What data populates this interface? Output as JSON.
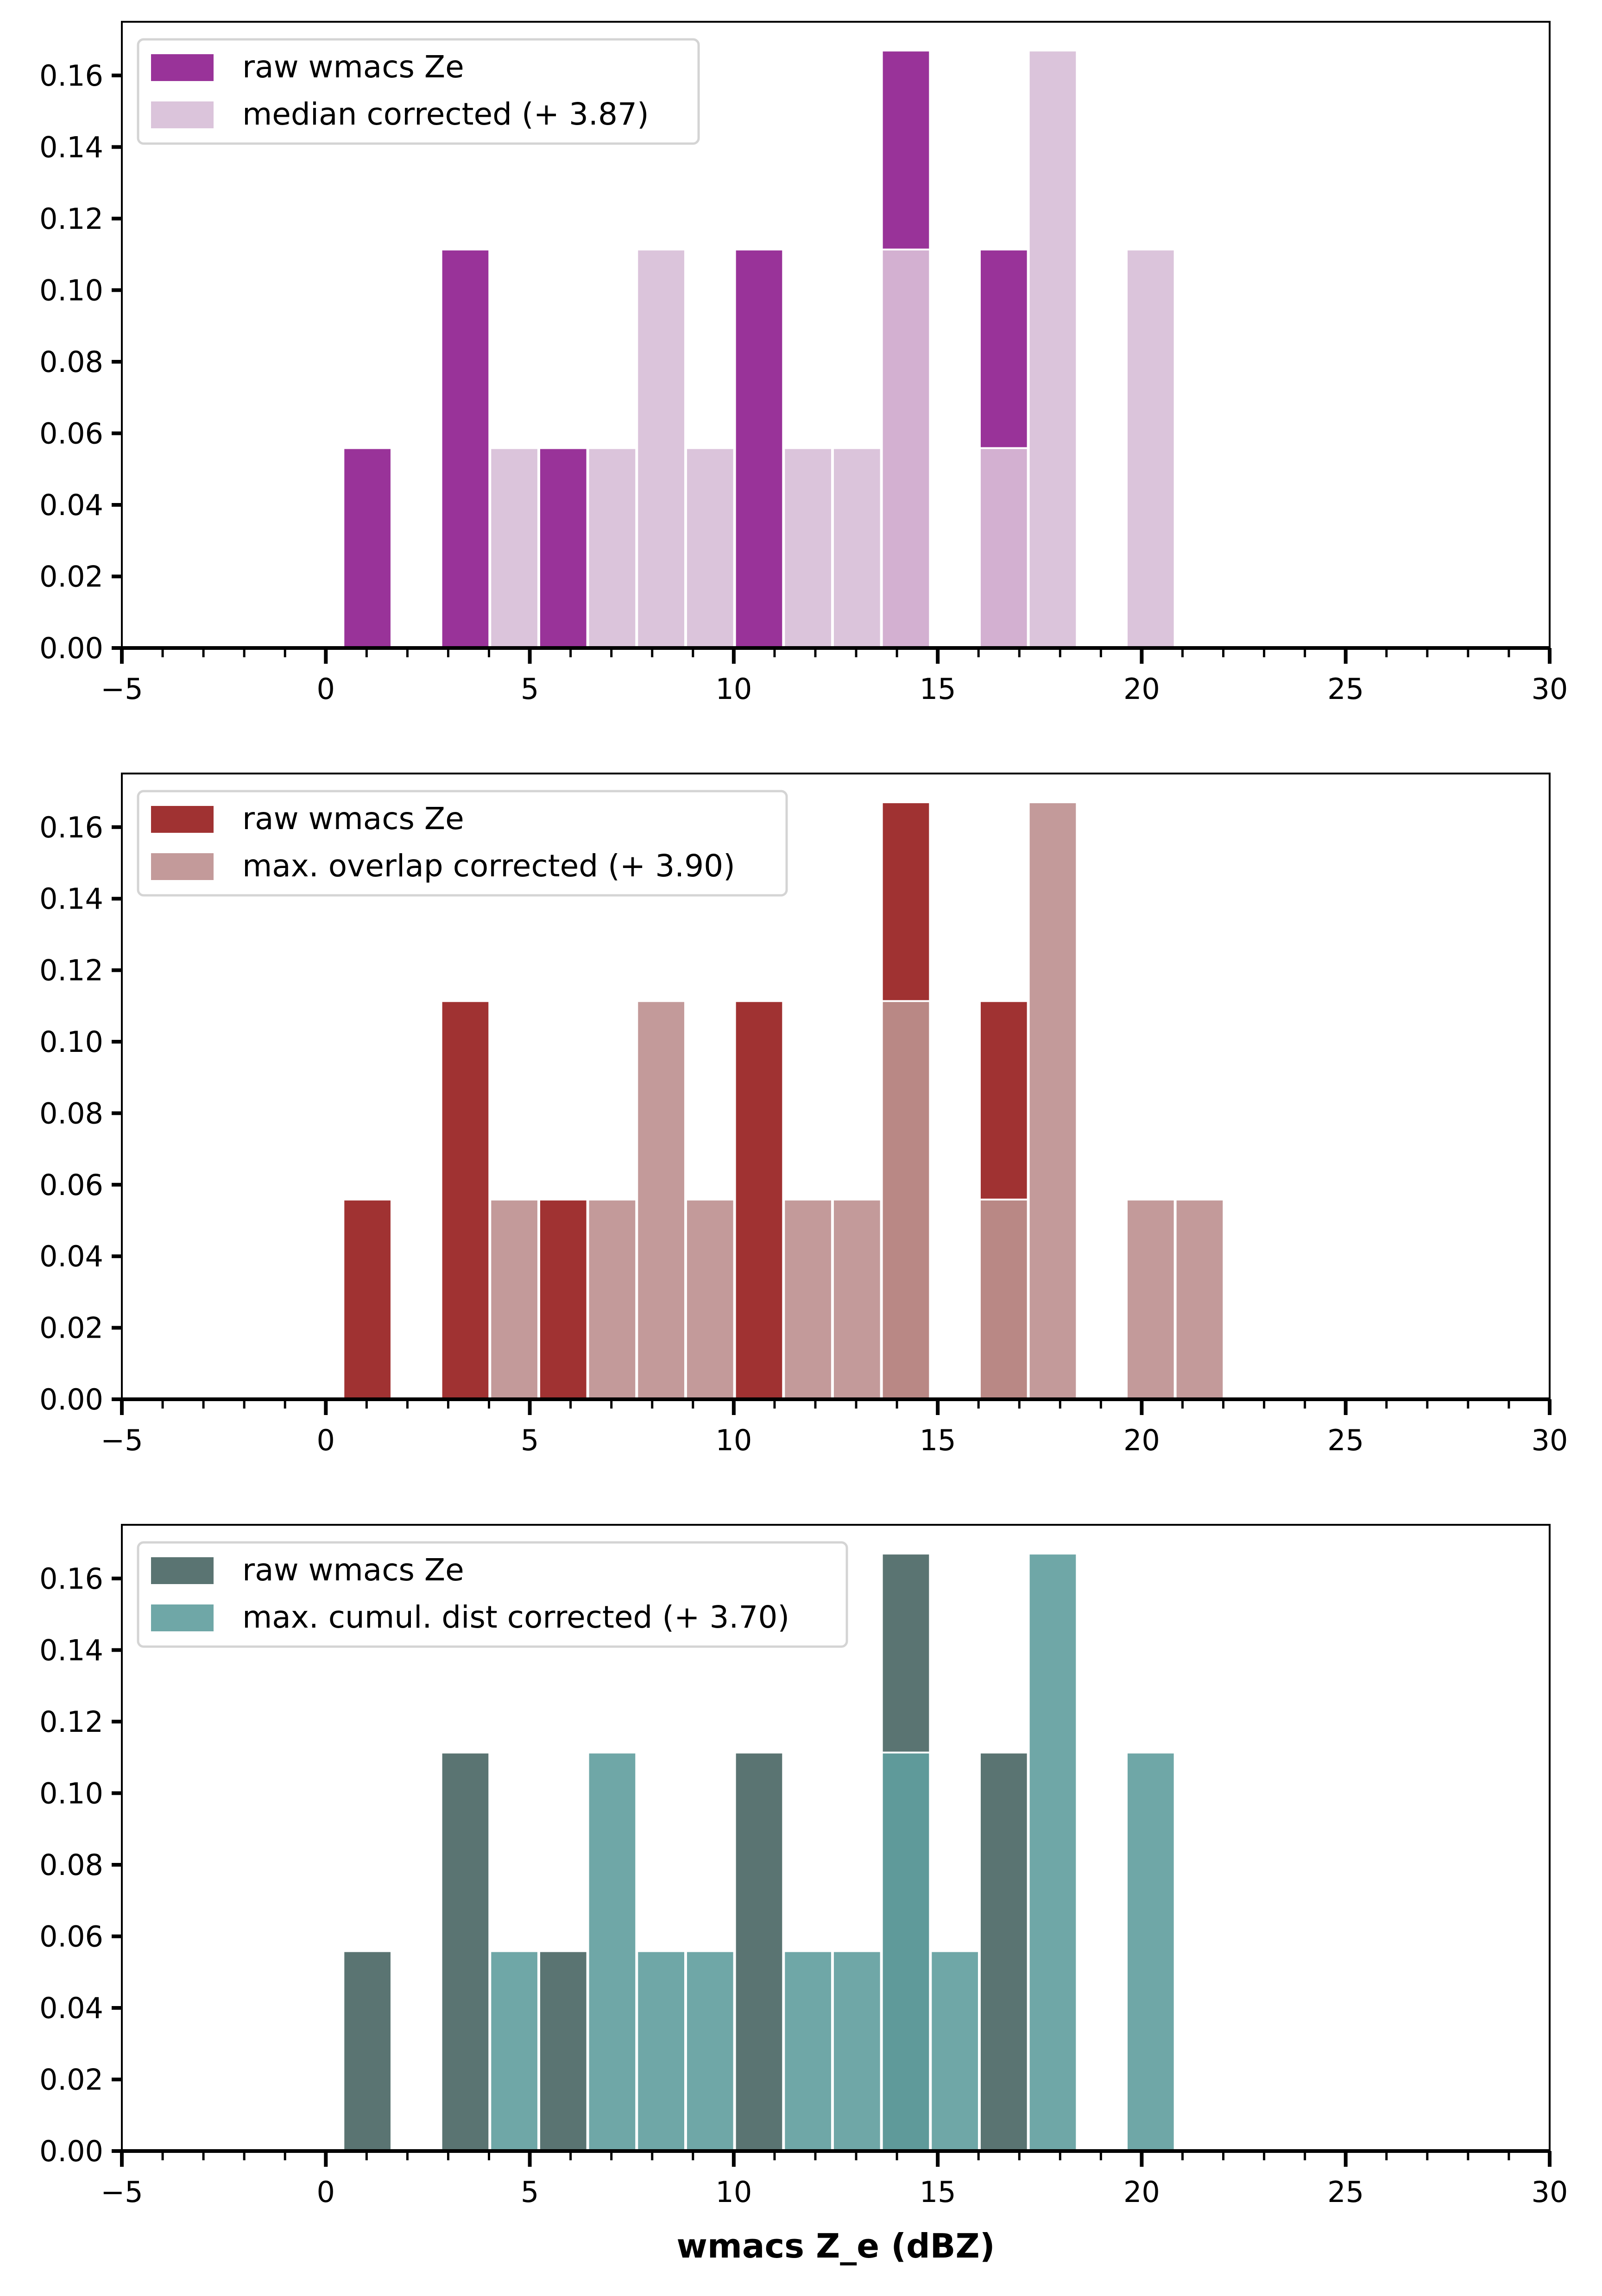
{
  "chart_data": [
    {
      "type": "bar",
      "subtype": "overlaid-histogram",
      "title": "",
      "xlabel": "",
      "ylabel": "",
      "xlim": [
        -5,
        30
      ],
      "ylim": [
        0,
        0.175
      ],
      "xticks": [
        -5,
        0,
        5,
        10,
        15,
        20,
        25,
        30
      ],
      "xtick_labels": [
        "−5",
        "0",
        "5",
        "10",
        "15",
        "20",
        "25",
        "30"
      ],
      "yticks": [
        0.0,
        0.02,
        0.04,
        0.06,
        0.08,
        0.1,
        0.12,
        0.14,
        0.16
      ],
      "ytick_labels": [
        "0.00",
        "0.02",
        "0.04",
        "0.06",
        "0.08",
        "0.10",
        "0.12",
        "0.14",
        "0.16"
      ],
      "bin_edges": [
        0.42,
        1.62,
        2.82,
        4.02,
        5.22,
        6.42,
        7.62,
        8.82,
        10.02,
        11.22,
        12.42,
        13.62,
        14.82,
        16.02,
        17.22,
        18.42,
        19.62,
        20.82,
        22.02
      ],
      "legend_position": "top-left",
      "grid": false,
      "colors": {
        "raw": "#993399",
        "corrected": "#dbc4db",
        "overlap": "#d3b0d1"
      },
      "series": [
        {
          "name": "raw wmacs Ze",
          "values": [
            0.0556,
            0,
            0.1111,
            0,
            0.0556,
            0,
            0,
            0,
            0.1111,
            0,
            0,
            0.1667,
            0,
            0.1111,
            0,
            0,
            0,
            0
          ]
        },
        {
          "name": "median corrected (+ 3.87)",
          "values": [
            0,
            0,
            0,
            0.0556,
            0,
            0.0556,
            0.1111,
            0.0556,
            0,
            0.0556,
            0.0556,
            0.1111,
            0,
            0.0556,
            0.1667,
            0,
            0.1111,
            0
          ]
        }
      ]
    },
    {
      "type": "bar",
      "subtype": "overlaid-histogram",
      "title": "",
      "xlabel": "",
      "ylabel": "",
      "xlim": [
        -5,
        30
      ],
      "ylim": [
        0,
        0.175
      ],
      "xticks": [
        -5,
        0,
        5,
        10,
        15,
        20,
        25,
        30
      ],
      "xtick_labels": [
        "−5",
        "0",
        "5",
        "10",
        "15",
        "20",
        "25",
        "30"
      ],
      "yticks": [
        0.0,
        0.02,
        0.04,
        0.06,
        0.08,
        0.1,
        0.12,
        0.14,
        0.16
      ],
      "ytick_labels": [
        "0.00",
        "0.02",
        "0.04",
        "0.06",
        "0.08",
        "0.10",
        "0.12",
        "0.14",
        "0.16"
      ],
      "bin_edges": [
        0.42,
        1.62,
        2.82,
        4.02,
        5.22,
        6.42,
        7.62,
        8.82,
        10.02,
        11.22,
        12.42,
        13.62,
        14.82,
        16.02,
        17.22,
        18.42,
        19.62,
        20.82,
        22.02
      ],
      "legend_position": "top-left",
      "grid": false,
      "colors": {
        "raw": "#a03232",
        "corrected": "#c39a9a",
        "overlap": "#b98885"
      },
      "series": [
        {
          "name": "raw wmacs Ze",
          "values": [
            0.0556,
            0,
            0.1111,
            0,
            0.0556,
            0,
            0,
            0,
            0.1111,
            0,
            0,
            0.1667,
            0,
            0.1111,
            0,
            0,
            0,
            0
          ]
        },
        {
          "name": "max. overlap corrected (+ 3.90)",
          "values": [
            0,
            0,
            0,
            0.0556,
            0,
            0.0556,
            0.1111,
            0.0556,
            0,
            0.0556,
            0.0556,
            0.1111,
            0,
            0.0556,
            0.1667,
            0,
            0.0556,
            0.0556
          ]
        }
      ]
    },
    {
      "type": "bar",
      "subtype": "overlaid-histogram",
      "title": "",
      "xlabel": "wmacs Z_e (dBZ)",
      "ylabel": "",
      "xlim": [
        -5,
        30
      ],
      "ylim": [
        0,
        0.175
      ],
      "xticks": [
        -5,
        0,
        5,
        10,
        15,
        20,
        25,
        30
      ],
      "xtick_labels": [
        "−5",
        "0",
        "5",
        "10",
        "15",
        "20",
        "25",
        "30"
      ],
      "yticks": [
        0.0,
        0.02,
        0.04,
        0.06,
        0.08,
        0.1,
        0.12,
        0.14,
        0.16
      ],
      "ytick_labels": [
        "0.00",
        "0.02",
        "0.04",
        "0.06",
        "0.08",
        "0.10",
        "0.12",
        "0.14",
        "0.16"
      ],
      "bin_edges": [
        0.42,
        1.62,
        2.82,
        4.02,
        5.22,
        6.42,
        7.62,
        8.82,
        10.02,
        11.22,
        12.42,
        13.62,
        14.82,
        16.02,
        17.22,
        18.42,
        19.62,
        20.82,
        22.02
      ],
      "legend_position": "top-left",
      "grid": false,
      "colors": {
        "raw": "#5a7472",
        "corrected": "#6fa7a7",
        "overlap": "#5f9a9a"
      },
      "series": [
        {
          "name": "raw wmacs Ze",
          "values": [
            0.0556,
            0,
            0.1111,
            0,
            0.0556,
            0,
            0,
            0,
            0.1111,
            0,
            0,
            0.1667,
            0,
            0.1111,
            0,
            0,
            0,
            0
          ]
        },
        {
          "name": "max. cumul. dist corrected (+ 3.70)",
          "values": [
            0,
            0,
            0,
            0.0556,
            0,
            0.1111,
            0.0556,
            0.0556,
            0,
            0.0556,
            0.0556,
            0.1111,
            0.0556,
            0,
            0.1667,
            0,
            0.1111,
            0
          ]
        }
      ]
    }
  ]
}
